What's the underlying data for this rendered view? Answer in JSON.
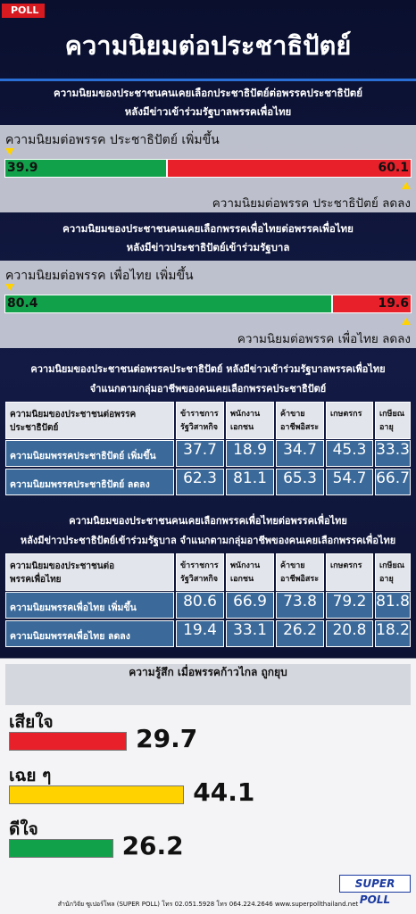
{
  "badge": "POLL",
  "title": "ความนิยมต่อประชาธิปัตย์",
  "sections": [
    {
      "heading": [
        "ความนิยมของประชาชนคนเคยเลือกประชาธิปัตย์ต่อพรรคประชาธิปัตย์",
        "หลังมีข่าวเข้าร่วมรัฐบาลพรรคเพื่อไทย"
      ],
      "up_label": "ความนิยมต่อพรรค ประชาธิปัตย์ เพิ่มขึ้น",
      "up": 39.9,
      "down": 60.1,
      "down_label": "ความนิยมต่อพรรค ประชาธิปัตย์ ลดลง"
    },
    {
      "heading": [
        "ความนิยมของประชาชนคนเคยเลือกพรรคเพื่อไทยต่อพรรคเพื่อไทย",
        "หลังมีข่าวประชาธิปัตย์เข้าร่วมรัฐบาล"
      ],
      "up_label": "ความนิยมต่อพรรค เพื่อไทย เพิ่มขึ้น",
      "up": 80.4,
      "down": 19.6,
      "down_label": "ความนิยมต่อพรรค เพื่อไทย ลดลง"
    }
  ],
  "up_color": "#12a14b",
  "down_color": "#e8202a",
  "tables": [
    {
      "heading": [
        "ความนิยมของประชาชนต่อพรรคประชาธิปัตย์ หลังมีข่าวเข้าร่วมรัฐบาลพรรคเพื่อไทย",
        "จำแนกตามกลุ่มอาชีพของคนเคยเลือกพรรคประชาธิปัตย์"
      ],
      "columns": [
        [
          "ความนิยมของประชาชนต่อพรรค",
          "ประชาธิปัตย์"
        ],
        [
          "ข้าราชการ",
          "รัฐวิสาหกิจ"
        ],
        [
          "พนักงาน",
          "เอกชน"
        ],
        [
          "ค้าขาย",
          "อาชีพอิสระ"
        ],
        [
          "เกษตรกร"
        ],
        [
          "เกษียณ",
          "อายุ"
        ]
      ],
      "rows": [
        {
          "label": "ความนิยมพรรคประชาธิปัตย์ เพิ่มขึ้น",
          "values": [
            37.7,
            18.9,
            34.7,
            45.3,
            33.3
          ]
        },
        {
          "label": "ความนิยมพรรคประชาธิปัตย์ ลดลง",
          "values": [
            62.3,
            81.1,
            65.3,
            54.7,
            66.7
          ]
        }
      ]
    },
    {
      "heading": [
        "ความนิยมของประชาชนคนเคยเลือกพรรคเพื่อไทยต่อพรรคเพื่อไทย",
        "หลังมีข่าวประชาธิปัตย์เข้าร่วมรัฐบาล จำแนกตามกลุ่มอาชีพของคนเคยเลือกพรรคเพื่อไทย"
      ],
      "columns": [
        [
          "ความนิยมของประชาชนต่อ",
          "พรรคเพื่อไทย"
        ],
        [
          "ข้าราชการ",
          "รัฐวิสาหกิจ"
        ],
        [
          "พนักงาน",
          "เอกชน"
        ],
        [
          "ค้าขาย",
          "อาชีพอิสระ"
        ],
        [
          "เกษตรกร"
        ],
        [
          "เกษียณ",
          "อายุ"
        ]
      ],
      "rows": [
        {
          "label": "ความนิยมพรรคเพื่อไทย เพิ่มขึ้น",
          "values": [
            80.6,
            66.9,
            73.8,
            79.2,
            81.8
          ]
        },
        {
          "label": "ความนิยมพรรคเพื่อไทย ลดลง",
          "values": [
            19.4,
            33.1,
            26.2,
            20.8,
            18.2
          ]
        }
      ]
    }
  ],
  "feelings": {
    "title": "ความรู้สึก เมื่อพรรคก้าวไกล ถูกยุบ",
    "items": [
      {
        "label": "เสียใจ",
        "value": 29.7,
        "color": "#e8202a"
      },
      {
        "label": "เฉย ๆ",
        "value": 44.1,
        "color": "#ffd200"
      },
      {
        "label": "ดีใจ",
        "value": 26.2,
        "color": "#12a14b"
      }
    ]
  },
  "footer": "สำนักวิจัย ซูเปอร์โพล (SUPER POLL) โทร 02.051.5928 โทร 064.224.2646  www.superpollthailand.net",
  "logo": "SUPER POLL"
}
